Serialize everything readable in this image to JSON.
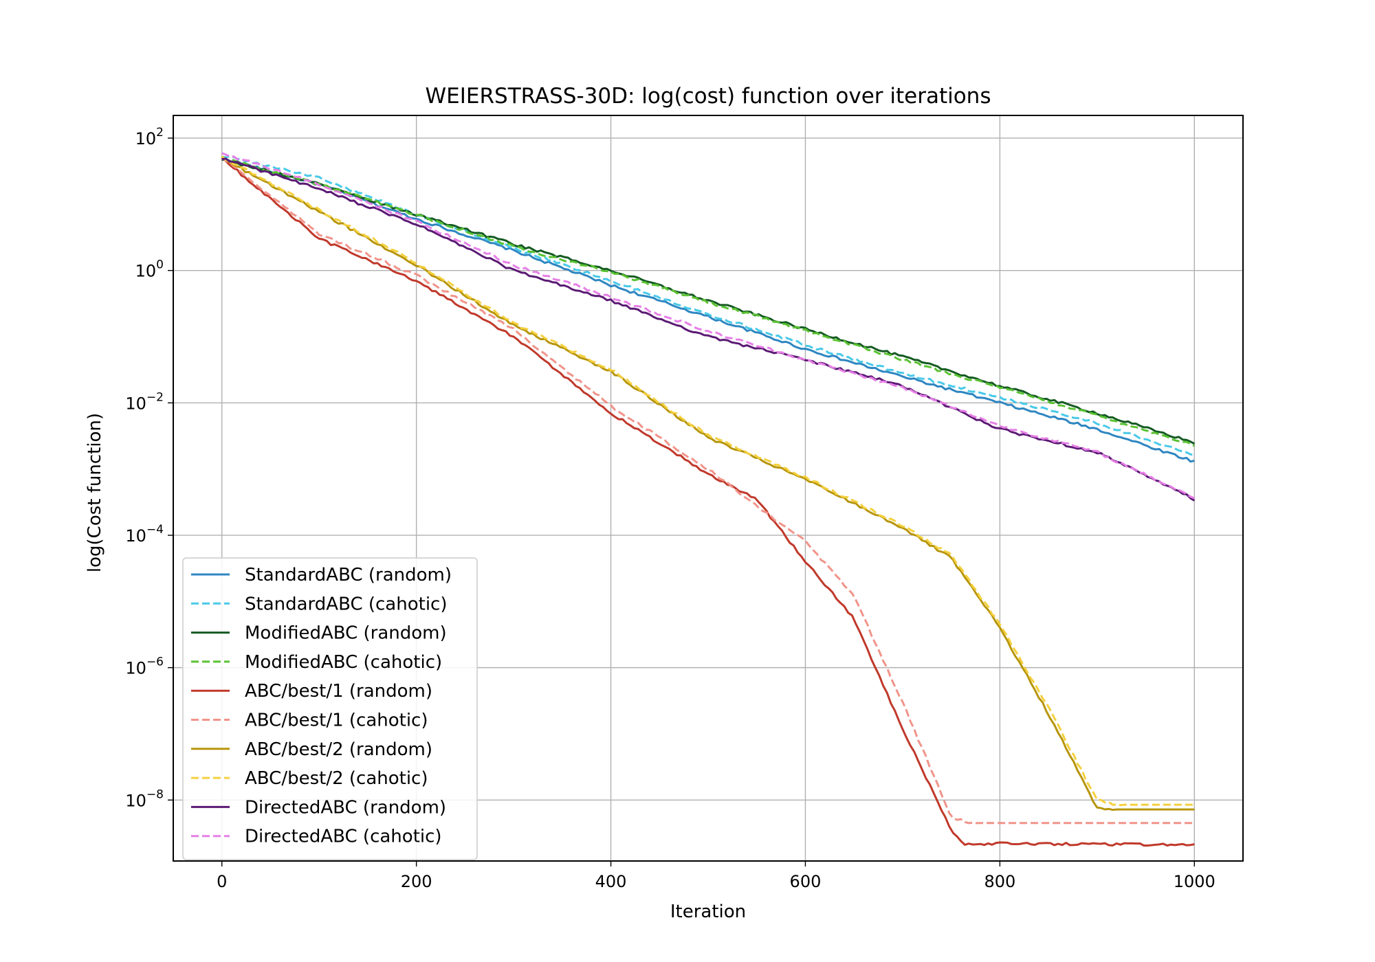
{
  "chart_data": {
    "type": "line",
    "title": "WEIERSTRASS-30D: log(cost) function over iterations",
    "xlabel": "Iteration",
    "ylabel": "log(Cost function)",
    "xlim": [
      -50,
      1050
    ],
    "ylim": [
      1.2e-09,
      220.0
    ],
    "yscale": "log",
    "grid": true,
    "legend_position": "lower-left",
    "x_ticks": [
      0,
      200,
      400,
      600,
      800,
      1000
    ],
    "y_ticks": [
      {
        "value": 100.0,
        "base": "10",
        "exp": "2"
      },
      {
        "value": 1.0,
        "base": "10",
        "exp": "0"
      },
      {
        "value": 0.01,
        "base": "10",
        "exp": "−2"
      },
      {
        "value": 0.0001,
        "base": "10",
        "exp": "−4"
      },
      {
        "value": 1e-06,
        "base": "10",
        "exp": "−6"
      },
      {
        "value": 1e-08,
        "base": "10",
        "exp": "−8"
      }
    ],
    "series": [
      {
        "name": "StandardABC (random)",
        "color": "#2e86c1",
        "dash": "solid",
        "points": [
          [
            0,
            50
          ],
          [
            100,
            20
          ],
          [
            200,
            6
          ],
          [
            300,
            2
          ],
          [
            400,
            0.6
          ],
          [
            500,
            0.2
          ],
          [
            600,
            0.065
          ],
          [
            700,
            0.025
          ],
          [
            800,
            0.01
          ],
          [
            900,
            0.004
          ],
          [
            1000,
            0.0013
          ]
        ]
      },
      {
        "name": "StandardABC (cahotic)",
        "color": "#48c9e8",
        "dash": "dashed",
        "points": [
          [
            0,
            55
          ],
          [
            100,
            25
          ],
          [
            200,
            7
          ],
          [
            300,
            2.2
          ],
          [
            400,
            0.7
          ],
          [
            500,
            0.22
          ],
          [
            600,
            0.075
          ],
          [
            700,
            0.028
          ],
          [
            800,
            0.012
          ],
          [
            900,
            0.005
          ],
          [
            1000,
            0.0016
          ]
        ]
      },
      {
        "name": "ModifiedABC (random)",
        "color": "#145a22",
        "dash": "solid",
        "points": [
          [
            0,
            48
          ],
          [
            100,
            20
          ],
          [
            200,
            7
          ],
          [
            300,
            2.5
          ],
          [
            400,
            1
          ],
          [
            500,
            0.35
          ],
          [
            600,
            0.13
          ],
          [
            700,
            0.05
          ],
          [
            800,
            0.018
          ],
          [
            900,
            0.007
          ],
          [
            1000,
            0.0025
          ]
        ]
      },
      {
        "name": "ModifiedABC (cahotic)",
        "color": "#5ac232",
        "dash": "dashed",
        "points": [
          [
            0,
            50
          ],
          [
            100,
            20
          ],
          [
            200,
            7
          ],
          [
            300,
            2.3
          ],
          [
            400,
            0.95
          ],
          [
            500,
            0.33
          ],
          [
            600,
            0.125
          ],
          [
            700,
            0.045
          ],
          [
            800,
            0.017
          ],
          [
            900,
            0.0065
          ],
          [
            1000,
            0.0023
          ]
        ]
      },
      {
        "name": "ABC/best/1 (random)",
        "color": "#c0392b",
        "dash": "solid",
        "points": [
          [
            0,
            50
          ],
          [
            100,
            3
          ],
          [
            200,
            0.7
          ],
          [
            300,
            0.1
          ],
          [
            400,
            0.007
          ],
          [
            500,
            0.00085
          ],
          [
            550,
            0.00035
          ],
          [
            600,
            4e-05
          ],
          [
            650,
            5.5e-06
          ],
          [
            700,
            1.2e-07
          ],
          [
            750,
            3.5e-09
          ],
          [
            762,
            2.2e-09
          ],
          [
            1000,
            2.1e-09
          ]
        ]
      },
      {
        "name": "ABC/best/1 (cahotic)",
        "color": "#f1948a",
        "dash": "dashed",
        "points": [
          [
            0,
            52
          ],
          [
            100,
            3.5
          ],
          [
            200,
            0.85
          ],
          [
            300,
            0.13
          ],
          [
            400,
            0.009
          ],
          [
            500,
            0.001
          ],
          [
            600,
            8e-05
          ],
          [
            650,
            1.2e-05
          ],
          [
            700,
            3e-07
          ],
          [
            750,
            5.5e-09
          ],
          [
            770,
            4.5e-09
          ],
          [
            1000,
            4.5e-09
          ]
        ]
      },
      {
        "name": "ABC/best/2 (random)",
        "color": "#b7950b",
        "dash": "solid",
        "points": [
          [
            0,
            50
          ],
          [
            200,
            1.2
          ],
          [
            300,
            0.15
          ],
          [
            400,
            0.03
          ],
          [
            500,
            0.003
          ],
          [
            600,
            0.0007
          ],
          [
            700,
            0.00013
          ],
          [
            750,
            4.5e-05
          ],
          [
            800,
            4e-06
          ],
          [
            850,
            2e-07
          ],
          [
            900,
            7.5e-09
          ],
          [
            910,
            7.2e-09
          ],
          [
            1000,
            7.2e-09
          ]
        ]
      },
      {
        "name": "ABC/best/2 (cahotic)",
        "color": "#f4d03f",
        "dash": "dashed",
        "points": [
          [
            0,
            52
          ],
          [
            200,
            1.3
          ],
          [
            300,
            0.16
          ],
          [
            400,
            0.032
          ],
          [
            500,
            0.0032
          ],
          [
            600,
            0.00075
          ],
          [
            700,
            0.00014
          ],
          [
            750,
            5e-05
          ],
          [
            800,
            4.5e-06
          ],
          [
            850,
            2.5e-07
          ],
          [
            900,
            1e-08
          ],
          [
            920,
            8.5e-09
          ],
          [
            1000,
            8.5e-09
          ]
        ]
      },
      {
        "name": "DirectedABC (random)",
        "color": "#5b1a74",
        "dash": "solid",
        "points": [
          [
            0,
            50
          ],
          [
            100,
            17
          ],
          [
            200,
            5
          ],
          [
            300,
            1
          ],
          [
            400,
            0.35
          ],
          [
            500,
            0.1
          ],
          [
            600,
            0.045
          ],
          [
            700,
            0.018
          ],
          [
            800,
            0.004
          ],
          [
            900,
            0.0018
          ],
          [
            1000,
            0.00035
          ]
        ]
      },
      {
        "name": "DirectedABC (cahotic)",
        "color": "#e67fe6",
        "dash": "dashed",
        "points": [
          [
            0,
            60
          ],
          [
            100,
            20
          ],
          [
            200,
            5.5
          ],
          [
            300,
            1.2
          ],
          [
            400,
            0.4
          ],
          [
            500,
            0.12
          ],
          [
            600,
            0.045
          ],
          [
            700,
            0.017
          ],
          [
            800,
            0.0045
          ],
          [
            900,
            0.0018
          ],
          [
            1000,
            0.00037
          ]
        ]
      }
    ]
  }
}
